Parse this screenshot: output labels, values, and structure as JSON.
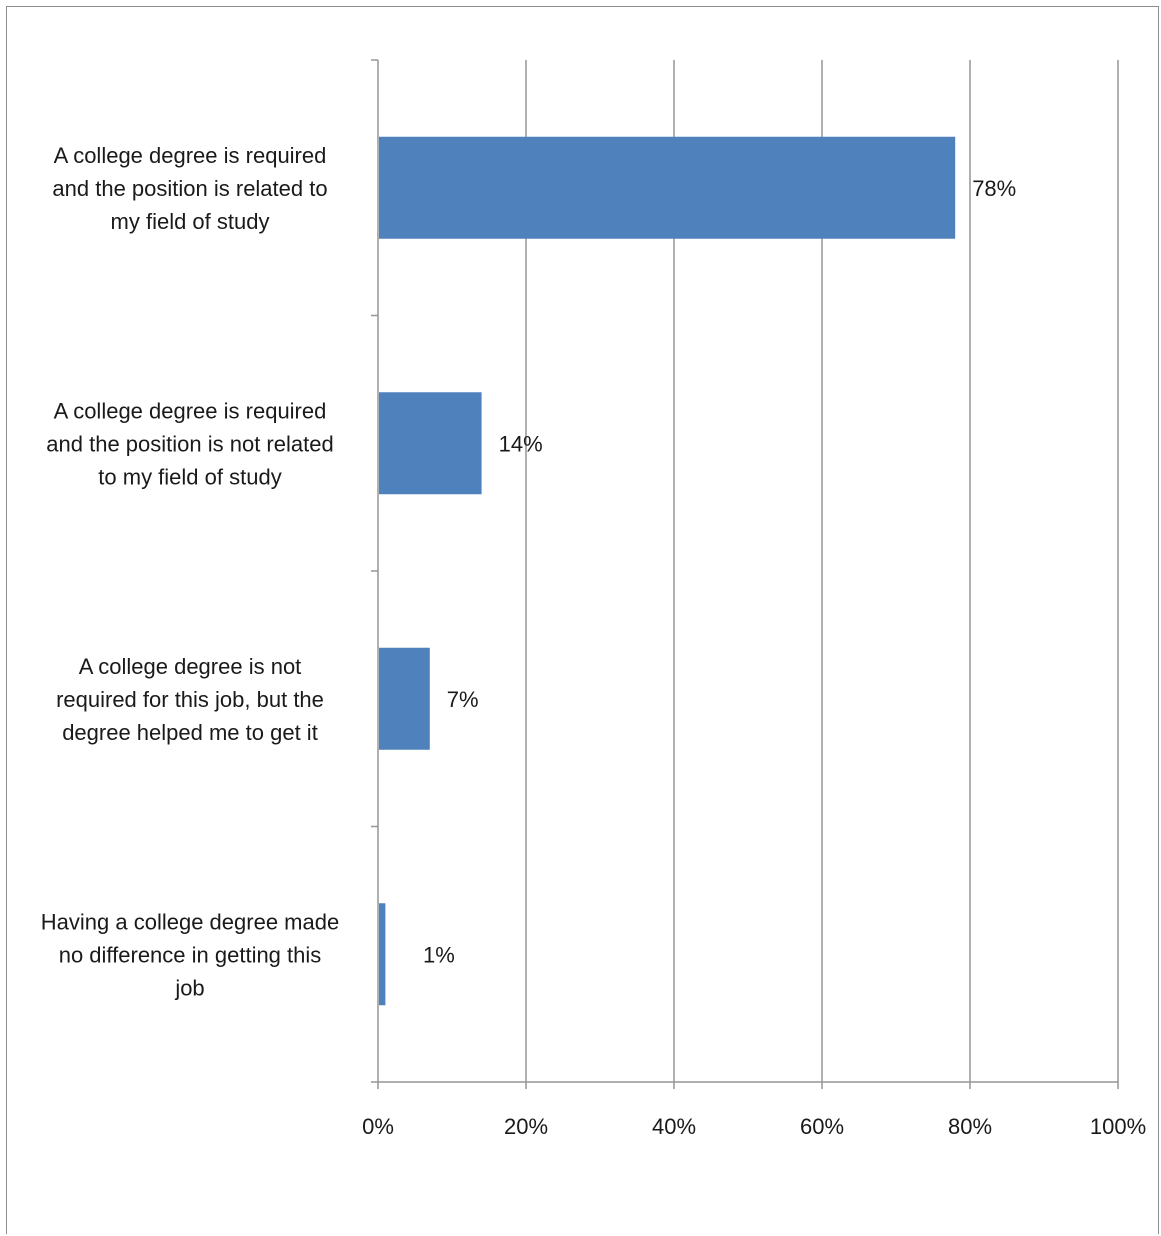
{
  "chart_data": {
    "type": "bar",
    "orientation": "horizontal",
    "title": "",
    "xlabel": "",
    "ylabel": "",
    "categories": [
      "A college degree is required and the position is related to my field of study",
      "A college degree is required and the position is not related to my field of study",
      "A college degree is not required for this job, but the degree helped me to get it",
      "Having a college degree made no difference in getting this job"
    ],
    "category_lines": [
      [
        "A college degree is required",
        "and the position is related to",
        "my field of study"
      ],
      [
        "A college degree is required",
        "and the position is not related",
        "to my field of study"
      ],
      [
        "A college degree is not",
        "required for this job, but the",
        "degree helped me to get it"
      ],
      [
        "Having a college degree made",
        "no difference in getting this",
        "job"
      ]
    ],
    "values": [
      78,
      14,
      7,
      1
    ],
    "value_labels": [
      "78%",
      "14%",
      "7%",
      "1%"
    ],
    "xlim": [
      0,
      100
    ],
    "xticks": [
      0,
      20,
      40,
      60,
      80,
      100
    ],
    "xtick_labels": [
      "0%",
      "20%",
      "40%",
      "60%",
      "80%",
      "100%"
    ],
    "grid": true,
    "legend": "none",
    "bar_color": "#4f81bd",
    "grid_color": "#969696"
  }
}
